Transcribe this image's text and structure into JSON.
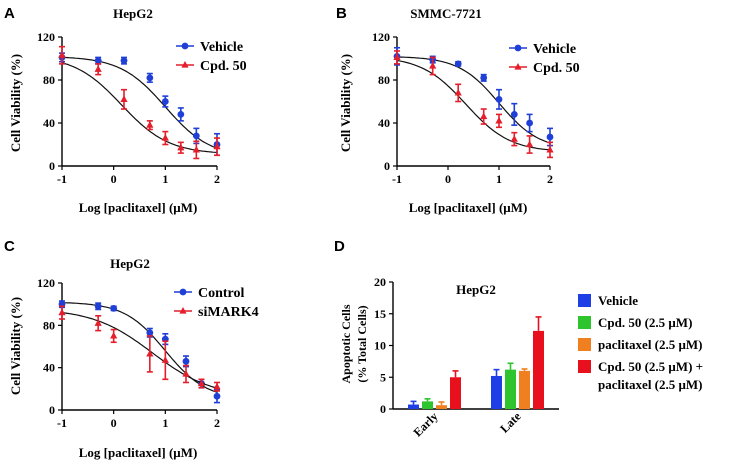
{
  "figure": {
    "panels": [
      {
        "letter": "A"
      },
      {
        "letter": "B"
      },
      {
        "letter": "C"
      },
      {
        "letter": "D"
      }
    ]
  },
  "chart_data": [
    {
      "panel": "A",
      "type": "line",
      "title": "HepG2",
      "xlabel": "Log [paclitaxel] (μM)",
      "ylabel": "Cell Viability (%)",
      "xlim": [
        -1,
        2
      ],
      "ylim": [
        0,
        120
      ],
      "xticks": [
        -1,
        0,
        1,
        2
      ],
      "yticks": [
        0,
        40,
        80,
        120
      ],
      "legend_position": "top-right",
      "series": [
        {
          "name": "Vehicle",
          "color": "#1f3fd6",
          "marker": "circle",
          "x": [
            -1,
            -0.3,
            0.2,
            0.7,
            1.0,
            1.3,
            1.6,
            2.0
          ],
          "y": [
            101,
            98,
            98,
            82,
            60,
            48,
            28,
            20
          ],
          "err": [
            4,
            3,
            3,
            4,
            5,
            6,
            7,
            10
          ],
          "fit": {
            "top": 102,
            "bottom": 8,
            "logIC50": 1.0,
            "hill": 1.0
          }
        },
        {
          "name": "Cpd. 50",
          "color": "#e41e2b",
          "marker": "triangle",
          "x": [
            -1,
            -0.3,
            0.2,
            0.7,
            1.0,
            1.3,
            1.6,
            2.0
          ],
          "y": [
            103,
            90,
            62,
            38,
            26,
            17,
            15,
            18
          ],
          "err": [
            8,
            5,
            9,
            4,
            6,
            5,
            8,
            8
          ],
          "fit": {
            "top": 103,
            "bottom": 11,
            "logIC50": 0.15,
            "hill": 0.95
          }
        }
      ]
    },
    {
      "panel": "B",
      "type": "line",
      "title": "SMMC-7721",
      "xlabel": "Log [paclitaxel] (μM)",
      "ylabel": "Cell Viability (%)",
      "xlim": [
        -1,
        2
      ],
      "ylim": [
        0,
        120
      ],
      "xticks": [
        -1,
        0,
        1,
        2
      ],
      "yticks": [
        0,
        40,
        80,
        120
      ],
      "legend_position": "top-right",
      "series": [
        {
          "name": "Vehicle",
          "color": "#1f3fd6",
          "marker": "circle",
          "x": [
            -1,
            -0.3,
            0.2,
            0.7,
            1.0,
            1.3,
            1.6,
            2.0
          ],
          "y": [
            102,
            99,
            95,
            82,
            62,
            48,
            40,
            27
          ],
          "err": [
            8,
            3,
            2,
            3,
            9,
            10,
            8,
            8
          ],
          "fit": {
            "top": 102,
            "bottom": 15,
            "logIC50": 1.0,
            "hill": 1.1
          }
        },
        {
          "name": "Cpd. 50",
          "color": "#e41e2b",
          "marker": "triangle",
          "x": [
            -1,
            -0.3,
            0.2,
            0.7,
            1.0,
            1.3,
            1.6,
            2.0
          ],
          "y": [
            101,
            93,
            68,
            46,
            42,
            25,
            20,
            15
          ],
          "err": [
            6,
            8,
            8,
            7,
            6,
            6,
            8,
            7
          ],
          "fit": {
            "top": 102,
            "bottom": 13,
            "logIC50": 0.35,
            "hill": 1.0
          }
        }
      ]
    },
    {
      "panel": "C",
      "type": "line",
      "title": "HepG2",
      "xlabel": "Log [paclitaxel] (μM)",
      "ylabel": "Cell Viability (%)",
      "xlim": [
        -1,
        2
      ],
      "ylim": [
        0,
        120
      ],
      "xticks": [
        -1,
        0,
        1,
        2
      ],
      "yticks": [
        0,
        40,
        80,
        120
      ],
      "legend_position": "top-right",
      "series": [
        {
          "name": "Control",
          "color": "#1f3fd6",
          "marker": "circle",
          "x": [
            -1,
            -0.3,
            0,
            0.7,
            1.0,
            1.4,
            1.7,
            2.0
          ],
          "y": [
            100,
            98,
            96,
            73,
            67,
            46,
            25,
            13
          ],
          "err": [
            3,
            3,
            2,
            4,
            5,
            5,
            4,
            6
          ],
          "fit": {
            "top": 102,
            "bottom": 10,
            "logIC50": 1.0,
            "hill": 1.1
          }
        },
        {
          "name": "siMARK4",
          "color": "#e41e2b",
          "marker": "triangle",
          "x": [
            -1,
            -0.3,
            0,
            0.7,
            1.0,
            1.4,
            1.7,
            2.0
          ],
          "y": [
            92,
            82,
            70,
            53,
            47,
            34,
            25,
            22
          ],
          "err": [
            6,
            7,
            6,
            17,
            18,
            8,
            4,
            4
          ],
          "fit": {
            "top": 96,
            "bottom": 12,
            "logIC50": 0.75,
            "hill": 0.75
          }
        }
      ]
    },
    {
      "panel": "D",
      "type": "bar",
      "title": "HepG2",
      "xlabel": "",
      "ylabel": "Apoptotic Cells",
      "ylabel2": "(% Total Cells)",
      "ylim": [
        0,
        20
      ],
      "yticks": [
        0,
        5,
        10,
        15,
        20
      ],
      "categories": [
        "Early",
        "Late"
      ],
      "legend_position": "right",
      "series": [
        {
          "name": "Vehicle",
          "legend_lines": [
            "Vehicle"
          ],
          "color": "#1f3fe6",
          "values": [
            0.7,
            5.2
          ],
          "err": [
            0.5,
            1.0
          ]
        },
        {
          "name": "Cpd. 50 (2.5 μM)",
          "legend_lines": [
            "Cpd. 50 (2.5 μM)"
          ],
          "color": "#2ec42e",
          "values": [
            1.2,
            6.2
          ],
          "err": [
            0.4,
            1.0
          ]
        },
        {
          "name": "paclitaxel (2.5 μM)",
          "legend_lines": [
            "paclitaxel (2.5 μM)"
          ],
          "color": "#f07f1f",
          "values": [
            0.6,
            6.0
          ],
          "err": [
            0.5,
            0.3
          ]
        },
        {
          "name": "Cpd. 50 (2.5 μM) + paclitaxel (2.5 μM)",
          "legend_lines": [
            "Cpd. 50 (2.5 μM)  +",
            "paclitaxel (2.5 μM)"
          ],
          "color": "#e8101c",
          "values": [
            5.0,
            12.3
          ],
          "err": [
            1.0,
            2.2
          ]
        }
      ]
    }
  ]
}
